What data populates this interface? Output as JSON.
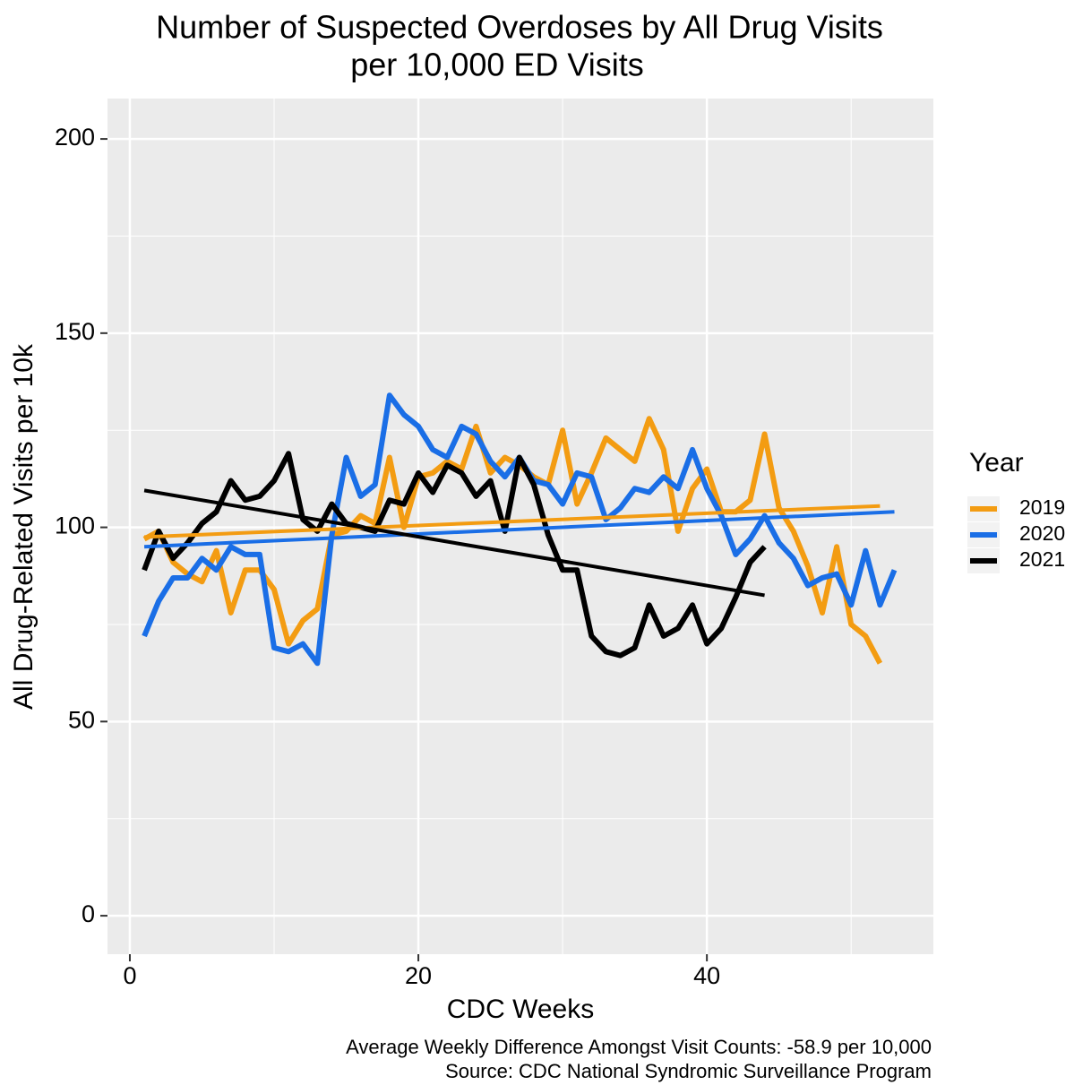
{
  "chart_data": {
    "type": "line",
    "title": "Number of Suspected Overdoses by All Drug Visits",
    "subtitle": "per 10,000 ED Visits",
    "x_label": "CDC Weeks",
    "y_label": "All Drug-Related Visits per 10k",
    "legend_title": "Year",
    "legend_position": "right",
    "captions": [
      "Average Weekly Difference Amongst Visit Counts: -58.9 per 10,000",
      "Source: CDC National Syndromic Surveillance Program"
    ],
    "grid": true,
    "xlim": [
      -1.55,
      55.7
    ],
    "ylim": [
      -9.9,
      210.4
    ],
    "xticks": [
      0,
      20,
      40
    ],
    "yticks": [
      0,
      50,
      100,
      150,
      200
    ],
    "xminor": [
      10,
      30,
      50
    ],
    "yminor": [
      25,
      75,
      125,
      175
    ],
    "x": [
      1,
      2,
      3,
      4,
      5,
      6,
      7,
      8,
      9,
      10,
      11,
      12,
      13,
      14,
      15,
      16,
      17,
      18,
      19,
      20,
      21,
      22,
      23,
      24,
      25,
      26,
      27,
      28,
      29,
      30,
      31,
      32,
      33,
      34,
      35,
      36,
      37,
      38,
      39,
      40,
      41,
      42,
      43,
      44,
      45,
      46,
      47,
      48,
      49,
      50,
      51,
      52,
      53
    ],
    "series": [
      {
        "name": "2019",
        "color": "#f39c12",
        "values": [
          97,
          99,
          91,
          88,
          86,
          94,
          78,
          89,
          89,
          84,
          70,
          76,
          79,
          98,
          99,
          103,
          101,
          118,
          100,
          113,
          114,
          117,
          115,
          126,
          114,
          118,
          116,
          113,
          111,
          125,
          106,
          114,
          123,
          120,
          117,
          128,
          120,
          99,
          110,
          115,
          104,
          104,
          107,
          124,
          105,
          99,
          90,
          78,
          95,
          75,
          72,
          65,
          null
        ],
        "trend": {
          "x": [
            1,
            52
          ],
          "values": [
            97.5,
            105.5
          ]
        }
      },
      {
        "name": "2020",
        "color": "#1a6ee6",
        "values": [
          72,
          81,
          87,
          87,
          92,
          89,
          95,
          93,
          93,
          69,
          68,
          70,
          65,
          98,
          118,
          108,
          111,
          134,
          129,
          126,
          120,
          118,
          126,
          124,
          117,
          113,
          118,
          112,
          111,
          106,
          114,
          113,
          102,
          105,
          110,
          109,
          113,
          110,
          120,
          110,
          103,
          93,
          97,
          103,
          96,
          92,
          85,
          87,
          88,
          80,
          94,
          80,
          89
        ],
        "trend": {
          "x": [
            1,
            53
          ],
          "values": [
            95,
            104
          ]
        }
      },
      {
        "name": "2021",
        "color": "#000000",
        "values": [
          89,
          99,
          92,
          96,
          101,
          104,
          112,
          107,
          108,
          112,
          119,
          102,
          99,
          106,
          101,
          100,
          99,
          107,
          106,
          114,
          109,
          116,
          114,
          108,
          112,
          99,
          118,
          111,
          98,
          89,
          89,
          72,
          68,
          67,
          69,
          80,
          72,
          74,
          80,
          70,
          74,
          82,
          91,
          95,
          null,
          null,
          null,
          null,
          null,
          null,
          null,
          null,
          null
        ],
        "trend": {
          "x": [
            1,
            44
          ],
          "values": [
            109.5,
            82.5
          ]
        }
      }
    ]
  }
}
